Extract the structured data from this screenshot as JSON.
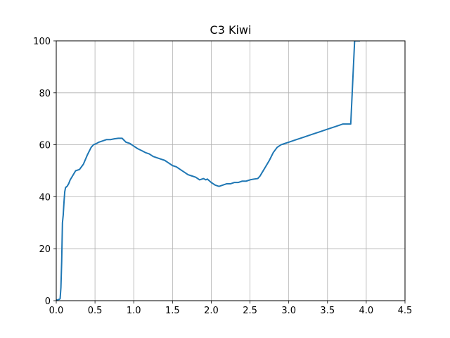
{
  "chart_data": {
    "type": "line",
    "title": "C3 Kiwi",
    "xlabel": "",
    "ylabel": "",
    "xlim": [
      0,
      4.5
    ],
    "ylim": [
      0,
      100
    ],
    "grid": true,
    "xticks": [
      0.0,
      0.5,
      1.0,
      1.5,
      2.0,
      2.5,
      3.0,
      3.5,
      4.0,
      4.5
    ],
    "xtick_labels": [
      "0.0",
      "0.5",
      "1.0",
      "1.5",
      "2.0",
      "2.5",
      "3.0",
      "3.5",
      "4.0",
      "4.5"
    ],
    "yticks": [
      0,
      20,
      40,
      60,
      80,
      100
    ],
    "ytick_labels": [
      "0",
      "20",
      "40",
      "60",
      "80",
      "100"
    ],
    "series": [
      {
        "color": "#1f77b4",
        "x": [
          0.0,
          0.02,
          0.03,
          0.04,
          0.05,
          0.06,
          0.07,
          0.08,
          0.09,
          0.1,
          0.11,
          0.12,
          0.13,
          0.14,
          0.16,
          0.18,
          0.2,
          0.25,
          0.3,
          0.35,
          0.4,
          0.45,
          0.48,
          0.52,
          0.55,
          0.6,
          0.65,
          0.7,
          0.75,
          0.8,
          0.85,
          0.9,
          0.95,
          1.0,
          1.05,
          1.1,
          1.15,
          1.2,
          1.25,
          1.3,
          1.35,
          1.4,
          1.45,
          1.5,
          1.55,
          1.6,
          1.65,
          1.7,
          1.75,
          1.8,
          1.85,
          1.9,
          1.93,
          1.95,
          2.0,
          2.05,
          2.1,
          2.15,
          2.2,
          2.25,
          2.3,
          2.35,
          2.4,
          2.45,
          2.5,
          2.55,
          2.6,
          2.63,
          2.65,
          2.7,
          2.75,
          2.8,
          2.85,
          2.9,
          2.95,
          3.0,
          3.1,
          3.2,
          3.3,
          3.4,
          3.5,
          3.6,
          3.7,
          3.8,
          3.85,
          3.88,
          3.9,
          3.92
        ],
        "y": [
          0.3,
          0.3,
          0.5,
          0.5,
          0.8,
          5,
          15,
          30,
          33,
          38,
          42,
          43.5,
          43.8,
          44,
          45,
          46.5,
          47.5,
          50,
          50.5,
          52.5,
          56,
          59,
          60,
          60.5,
          61,
          61.5,
          62,
          62,
          62.3,
          62.5,
          62.5,
          61,
          60.5,
          59.5,
          58.5,
          57.8,
          57,
          56.5,
          55.5,
          55,
          54.5,
          54,
          53,
          52,
          51.5,
          50.5,
          49.5,
          48.5,
          48,
          47.5,
          46.5,
          47,
          46.5,
          46.8,
          45.5,
          44.5,
          44,
          44.5,
          45,
          45,
          45.5,
          45.5,
          46,
          46,
          46.5,
          46.8,
          47,
          48,
          49,
          51.5,
          54,
          57,
          59,
          60,
          60.5,
          61,
          62,
          63,
          64,
          65,
          66,
          67,
          68,
          68,
          100,
          100,
          100,
          100
        ]
      }
    ]
  }
}
